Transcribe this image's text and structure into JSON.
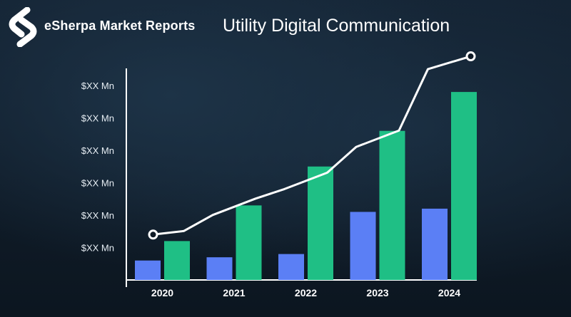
{
  "header": {
    "brand_name": "eSherpa Market Reports",
    "logo_icon": "esherpa-logo-icon"
  },
  "chart_data": {
    "type": "bar",
    "title": "Utility Digital Communication",
    "categories": [
      "2020",
      "2021",
      "2022",
      "2023",
      "2024"
    ],
    "y_tick_labels": [
      "$XX Mn",
      "$XX Mn",
      "$XX Mn",
      "$XX Mn",
      "$XX Mn",
      "$XX Mn"
    ],
    "ylim": [
      0,
      6.4
    ],
    "series": [
      {
        "type": "bar",
        "values": [
          0.6,
          0.7,
          0.8,
          2.1,
          2.2
        ],
        "color": "#5b7ff5"
      },
      {
        "type": "bar",
        "values": [
          1.2,
          2.3,
          3.5,
          4.6,
          5.8
        ],
        "color": "#1fbf85"
      },
      {
        "type": "line",
        "values": [
          1.4,
          2.4,
          3.2,
          4.5,
          6.9
        ],
        "color": "#ffffff"
      }
    ],
    "legend": "none",
    "grid": false
  }
}
